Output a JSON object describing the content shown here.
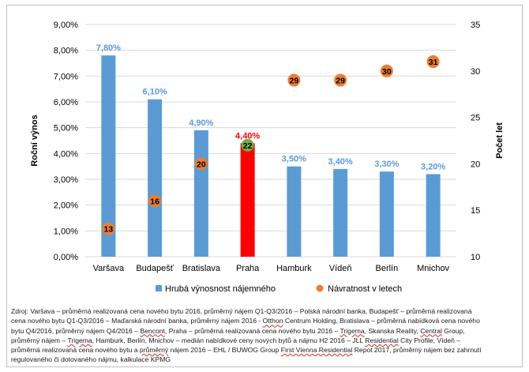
{
  "chart_data": {
    "type": "bar",
    "categories": [
      "Varšava",
      "Budapešť",
      "Bratislava",
      "Praha",
      "Hamburk",
      "Vídeň",
      "Berlín",
      "Mnichov"
    ],
    "series": [
      {
        "name": "Hrubá výnosnost nájemného",
        "values": [
          7.8,
          6.1,
          4.9,
          4.4,
          3.5,
          3.4,
          3.3,
          3.2
        ],
        "labels": [
          "7,80%",
          "6,10%",
          "4,90%",
          "4,40%",
          "3,50%",
          "3,40%",
          "3,30%",
          "3,20%"
        ],
        "axis": "left",
        "color": "#5b9bd5",
        "highlight": {
          "category": "Praha",
          "color": "#ff0000"
        }
      },
      {
        "name": "Návratnost v letech",
        "values": [
          13,
          16,
          20,
          22,
          29,
          29,
          30,
          31
        ],
        "labels": [
          "13",
          "16",
          "20",
          "22",
          "29",
          "29",
          "30",
          "31"
        ],
        "axis": "right",
        "color": "#ed7d31",
        "highlight": {
          "category": "Praha",
          "color": "#70ad47"
        }
      }
    ],
    "ylabel": "Roční výnos",
    "y2label": "Počet let",
    "ylim": [
      0,
      9
    ],
    "y2lim": [
      10,
      35
    ],
    "yticks": [
      "0,00%",
      "1,00%",
      "2,00%",
      "3,00%",
      "4,00%",
      "5,00%",
      "6,00%",
      "7,00%",
      "8,00%",
      "9,00%"
    ],
    "y2ticks": [
      "10",
      "15",
      "20",
      "25",
      "30",
      "35"
    ],
    "grid": true,
    "legend": "bottom",
    "colors": {
      "bar_label": "#5b9bd5",
      "highlight_label": "#ff0000",
      "axis_text": "#000000",
      "grid": "#d9d9d9"
    }
  },
  "source": {
    "lines": [
      [
        {
          "t": "Zdroj: Varšava – průměrná realizovaná cena nového bytu 2016, průměrný nájem Q1-Q3/2016 – Polská národní banka, Budapešť – průměrná realizovaná"
        }
      ],
      [
        {
          "t": "cena nového bytu Q1-Q3/2016 – Maďarská národní banka, průměrný nájem 2016 - "
        },
        {
          "t": "Otthon",
          "u": true
        },
        {
          "t": " Centrum Holding, Bratislava – průměrná nabídková cena nového"
        }
      ],
      [
        {
          "t": "bytu Q4/2016, průměrný nájem Q4/2016 – "
        },
        {
          "t": "Bencont",
          "u": true
        },
        {
          "t": ", Praha – průměrná realizovaná cena nového bytu 2016 – "
        },
        {
          "t": "Trigema",
          "u": true
        },
        {
          "t": ", Skanska Reality, "
        },
        {
          "t": "Central",
          "u": true
        },
        {
          "t": " Group,"
        }
      ],
      [
        {
          "t": "průměrný nájem – "
        },
        {
          "t": "Trigema",
          "u": true
        },
        {
          "t": ", Hamburk, Berlín, Mnichov – medián nabídkové ceny nových bytů a nájmu H2 2016 – JLL "
        },
        {
          "t": "Residential",
          "u": true
        },
        {
          "t": " City Profile, Vídeň –"
        }
      ],
      [
        {
          "t": "průměrná realizovaná cena nového bytu a "
        },
        {
          "t": "průměrný",
          "u": true
        },
        {
          "t": " nájem 2016 – EHL / BUWOG Group "
        },
        {
          "t": "First Vienna Residential",
          "u": true
        },
        {
          "t": " Repot 2017, průměrný nájem bez zahrnutí"
        }
      ],
      [
        {
          "t": "regulovaného či dotovaného nájmu, kalkulace KPMG"
        }
      ]
    ]
  }
}
